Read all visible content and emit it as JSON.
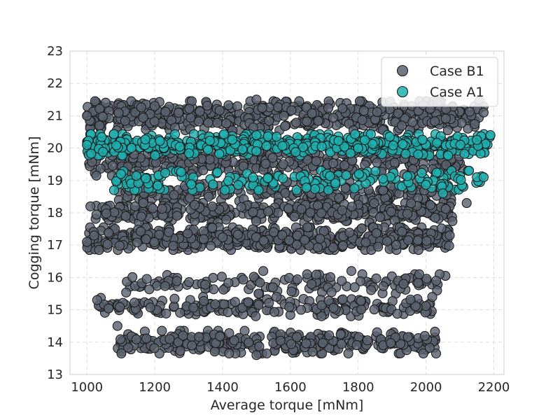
{
  "chart_data": {
    "type": "scatter",
    "title": "",
    "xlabel": "Average torque [mNm]",
    "ylabel": "Cogging torque [mNm]",
    "xlim": [
      950,
      2230
    ],
    "ylim": [
      13,
      23
    ],
    "x_ticks": [
      "1000",
      "1200",
      "1400",
      "1600",
      "1800",
      "2000",
      "2200"
    ],
    "y_ticks": [
      "13",
      "14",
      "15",
      "16",
      "17",
      "18",
      "19",
      "20",
      "21",
      "22",
      "23"
    ],
    "grid": true,
    "legend_position": "top-right",
    "legend": [
      "Case B1",
      "Case A1"
    ],
    "series": [
      {
        "name": "Case B1",
        "color": "#5c6370",
        "edge_color": "#1e1e1e",
        "bands": [
          {
            "level": 21.0,
            "spread": 0.45,
            "x_range": [
              1000,
              2170
            ],
            "count": 520
          },
          {
            "level": 19.6,
            "spread": 0.45,
            "x_range": [
              1000,
              2110
            ],
            "count": 360
          },
          {
            "level": 18.6,
            "spread": 0.35,
            "x_range": [
              1080,
              2080
            ],
            "count": 230
          },
          {
            "level": 18.0,
            "spread": 0.3,
            "x_range": [
              1020,
              2080
            ],
            "count": 330
          },
          {
            "level": 17.2,
            "spread": 0.35,
            "x_range": [
              1000,
              2070
            ],
            "count": 520
          },
          {
            "level": 15.8,
            "spread": 0.3,
            "x_range": [
              1110,
              2060
            ],
            "count": 130
          },
          {
            "level": 15.1,
            "spread": 0.3,
            "x_range": [
              1030,
              2020
            ],
            "count": 190
          },
          {
            "level": 14.0,
            "spread": 0.35,
            "x_range": [
              1090,
              2030
            ],
            "count": 330
          }
        ],
        "points_sample": [
          [
            1000,
            21.0
          ],
          [
            1000,
            17.1
          ],
          [
            1010,
            18.2
          ],
          [
            1030,
            15.3
          ],
          [
            1090,
            14.5
          ],
          [
            1200,
            21.3
          ],
          [
            1500,
            21.5
          ],
          [
            1520,
            16.2
          ],
          [
            1780,
            16.2
          ],
          [
            1980,
            16.1
          ],
          [
            2030,
            15.9
          ],
          [
            2070,
            17.3
          ],
          [
            2120,
            18.3
          ],
          [
            2170,
            21.1
          ],
          [
            1500,
            13.6
          ]
        ]
      },
      {
        "name": "Case A1",
        "color": "#1fb0b0",
        "edge_color": "#1e1e1e",
        "bands": [
          {
            "level": 20.1,
            "spread": 0.33,
            "x_range": [
              1000,
              2190
            ],
            "count": 480
          },
          {
            "level": 19.0,
            "spread": 0.3,
            "x_range": [
              1080,
              2170
            ],
            "count": 170
          }
        ],
        "points_sample": [
          [
            1000,
            20.1
          ],
          [
            1080,
            18.7
          ],
          [
            1100,
            19.2
          ],
          [
            1500,
            20.4
          ],
          [
            1800,
            20.0
          ],
          [
            2050,
            18.6
          ],
          [
            2150,
            19.1
          ],
          [
            2170,
            19.1
          ],
          [
            2190,
            20.4
          ]
        ]
      }
    ]
  }
}
